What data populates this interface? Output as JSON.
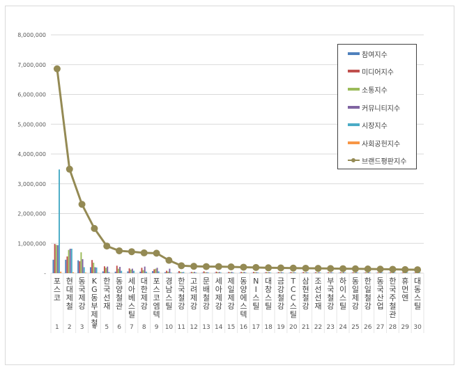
{
  "chart_data": {
    "type": "bar",
    "title": "",
    "xlabel": "",
    "ylabel": "",
    "ylim": [
      0,
      8000000
    ],
    "yticks": [
      "-",
      "1,000,000",
      "2,000,000",
      "3,000,000",
      "4,000,000",
      "5,000,000",
      "6,000,000",
      "7,000,000",
      "8,000,000"
    ],
    "grid": true,
    "legend_position": "upper-right-inside",
    "rank_labels": [
      "1",
      "2",
      "3",
      "4",
      "5",
      "6",
      "7",
      "8",
      "9",
      "10",
      "11",
      "12",
      "13",
      "14",
      "15",
      "16",
      "17",
      "18",
      "19",
      "20",
      "21",
      "22",
      "23",
      "24",
      "25",
      "26",
      "27",
      "28",
      "29",
      "30"
    ],
    "categories": [
      "포스코",
      "현대제철",
      "동국제강",
      "KG동부제철",
      "한국선재",
      "동양철관",
      "세아베스틸",
      "대한제강",
      "포스코엠텍",
      "경남스틸",
      "한국철강",
      "고려제강",
      "문배철강",
      "세아제강",
      "제일제강",
      "동양에스텍",
      "NI스틸",
      "대창스틸",
      "금강철강",
      "TCC스틸",
      "삼현철강",
      "조선선재",
      "부국철강",
      "하이스틸",
      "동일제강",
      "한일철강",
      "동국산업",
      "한국주철관",
      "휴먼엔",
      "대동스틸"
    ],
    "series": [
      {
        "name": "참여지수",
        "kind": "bar",
        "color": "#4F81BD",
        "values": [
          450000,
          450000,
          430000,
          200000,
          60000,
          50000,
          60000,
          50000,
          70000,
          30000,
          15000,
          10000,
          15000,
          12000,
          10000,
          10000,
          10000,
          10000,
          10000,
          10000,
          10000,
          10000,
          10000,
          10000,
          10000,
          10000,
          10000,
          10000,
          10000,
          10000
        ]
      },
      {
        "name": "미디어지수",
        "kind": "bar",
        "color": "#C0504D",
        "values": [
          980000,
          560000,
          400000,
          440000,
          230000,
          250000,
          160000,
          180000,
          130000,
          80000,
          70000,
          40000,
          60000,
          50000,
          40000,
          40000,
          40000,
          35000,
          35000,
          35000,
          35000,
          30000,
          30000,
          30000,
          30000,
          25000,
          25000,
          25000,
          20000,
          20000
        ]
      },
      {
        "name": "소통지수",
        "kind": "bar",
        "color": "#9BBB59",
        "values": [
          950000,
          780000,
          700000,
          350000,
          180000,
          150000,
          120000,
          100000,
          150000,
          50000,
          40000,
          30000,
          30000,
          30000,
          30000,
          30000,
          30000,
          30000,
          30000,
          25000,
          25000,
          25000,
          25000,
          25000,
          25000,
          25000,
          20000,
          20000,
          20000,
          20000
        ]
      },
      {
        "name": "커뮤니티지수",
        "kind": "bar",
        "color": "#8064A2",
        "values": [
          940000,
          820000,
          470000,
          200000,
          220000,
          210000,
          150000,
          220000,
          180000,
          150000,
          30000,
          40000,
          30000,
          40000,
          40000,
          40000,
          30000,
          30000,
          30000,
          30000,
          30000,
          30000,
          30000,
          30000,
          30000,
          30000,
          30000,
          30000,
          20000,
          20000
        ]
      },
      {
        "name": "시장지수",
        "kind": "bar",
        "color": "#4BACC6",
        "values": [
          3480000,
          820000,
          200000,
          190000,
          40000,
          80000,
          80000,
          50000,
          60000,
          20000,
          40000,
          20000,
          20000,
          20000,
          20000,
          20000,
          20000,
          20000,
          20000,
          20000,
          20000,
          20000,
          20000,
          20000,
          20000,
          20000,
          20000,
          20000,
          20000,
          20000
        ]
      },
      {
        "name": "사회공헌지수",
        "kind": "bar",
        "color": "#F79646",
        "values": [
          50000,
          30000,
          20000,
          10000,
          5000,
          5000,
          5000,
          5000,
          5000,
          5000,
          5000,
          5000,
          5000,
          5000,
          5000,
          5000,
          5000,
          5000,
          5000,
          5000,
          5000,
          5000,
          5000,
          5000,
          5000,
          5000,
          5000,
          5000,
          5000,
          5000
        ]
      },
      {
        "name": "브랜드평판지수",
        "kind": "line",
        "color": "#948A54",
        "values": [
          6860000,
          3490000,
          2310000,
          1500000,
          910000,
          750000,
          720000,
          680000,
          670000,
          430000,
          250000,
          230000,
          220000,
          220000,
          210000,
          200000,
          190000,
          180000,
          175000,
          170000,
          165000,
          160000,
          155000,
          150000,
          145000,
          140000,
          135000,
          130000,
          120000,
          115000
        ]
      }
    ]
  },
  "legend": {
    "items": [
      {
        "label": "참여지수",
        "color": "#4F81BD",
        "kind": "bar"
      },
      {
        "label": "미디어지수",
        "color": "#C0504D",
        "kind": "bar"
      },
      {
        "label": "소통지수",
        "color": "#9BBB59",
        "kind": "bar"
      },
      {
        "label": "커뮤니티지수",
        "color": "#8064A2",
        "kind": "bar"
      },
      {
        "label": "시장지수",
        "color": "#4BACC6",
        "kind": "bar"
      },
      {
        "label": "사회공헌지수",
        "color": "#F79646",
        "kind": "bar"
      },
      {
        "label": "브랜드평판지수",
        "color": "#948A54",
        "kind": "line"
      }
    ]
  }
}
